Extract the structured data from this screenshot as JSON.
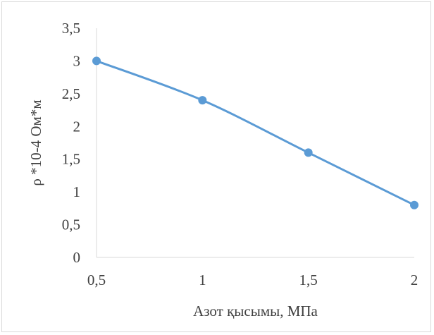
{
  "chart_data": {
    "type": "line",
    "title": "",
    "xlabel": "Азот қысымы, МПа",
    "ylabel": "ρ *10-4 Ом*м",
    "x": [
      0.5,
      1,
      1.5,
      2
    ],
    "x_tick_labels": [
      "0,5",
      "1",
      "1,5",
      "2"
    ],
    "y_ticks": [
      0,
      0.5,
      1,
      1.5,
      2,
      2.5,
      3,
      3.5
    ],
    "y_tick_labels": [
      "0",
      "0,5",
      "1",
      "1,5",
      "2",
      "2,5",
      "3",
      "3,5"
    ],
    "xlim": [
      0.5,
      2
    ],
    "ylim": [
      0,
      3.5
    ],
    "grid": false,
    "legend": "none",
    "series": [
      {
        "values": [
          3.0,
          2.4,
          1.6,
          0.8
        ],
        "color": "#5b9bd5",
        "smooth": true,
        "markers": true
      }
    ]
  }
}
